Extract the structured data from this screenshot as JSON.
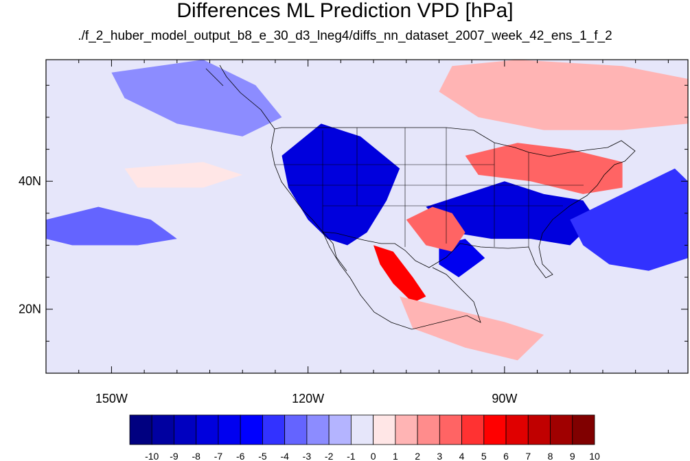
{
  "title": "Differences ML Prediction VPD [hPa]",
  "subtitle": "./f_2_huber_model_output_b8_e_30_d3_lneg4/diffs_nn_dataset_2007_week_42_ens_1_f_2",
  "map": {
    "projection": "cylindrical-equidistant",
    "lon_range": [
      -160,
      -62
    ],
    "lat_range": [
      10,
      59
    ],
    "x_ticks": [
      {
        "value": -150,
        "label": "150W"
      },
      {
        "value": -120,
        "label": "120W"
      },
      {
        "value": -90,
        "label": "90W"
      }
    ],
    "y_ticks": [
      {
        "value": 40,
        "label": "40N"
      },
      {
        "value": 20,
        "label": "20N"
      }
    ],
    "background_field": "-1 to 0"
  },
  "colorbar": {
    "labels": [
      "-10",
      "-9",
      "-8",
      "-7",
      "-6",
      "-5",
      "-4",
      "-3",
      "-2",
      "-1",
      "0",
      "1",
      "2",
      "3",
      "4",
      "5",
      "6",
      "7",
      "8",
      "9",
      "10"
    ],
    "colors": [
      "#000080",
      "#0000a0",
      "#0000c0",
      "#0000dd",
      "#0000f0",
      "#0000ff",
      "#3232ff",
      "#6464ff",
      "#8c8cff",
      "#b4b4ff",
      "#e6e6fa",
      "#ffe6e6",
      "#ffb4b4",
      "#ff8c8c",
      "#ff6464",
      "#ff3232",
      "#ff0000",
      "#e00000",
      "#c00000",
      "#a00000",
      "#800000"
    ]
  },
  "field_regions": [
    {
      "name": "western-us-strong-negative",
      "value": -7,
      "pts": [
        [
          -124,
          44
        ],
        [
          -118,
          49
        ],
        [
          -112,
          47
        ],
        [
          -106,
          42
        ],
        [
          -108,
          37
        ],
        [
          -111,
          32
        ],
        [
          -114,
          30
        ],
        [
          -117,
          31
        ],
        [
          -120,
          34
        ],
        [
          -123,
          39
        ]
      ]
    },
    {
      "name": "east-central-us-strong-negative",
      "value": -7,
      "pts": [
        [
          -102,
          36
        ],
        [
          -96,
          38
        ],
        [
          -90,
          40
        ],
        [
          -84,
          38
        ],
        [
          -78,
          37
        ],
        [
          -76,
          34
        ],
        [
          -80,
          30
        ],
        [
          -86,
          31
        ],
        [
          -92,
          31
        ],
        [
          -98,
          32
        ]
      ]
    },
    {
      "name": "south-texas-negative",
      "value": -6,
      "pts": [
        [
          -100,
          30
        ],
        [
          -96,
          31
        ],
        [
          -93,
          28
        ],
        [
          -97,
          25
        ],
        [
          -100,
          27
        ]
      ]
    },
    {
      "name": "mexico-strong-positive",
      "value": 6,
      "pts": [
        [
          -110,
          30
        ],
        [
          -107,
          29
        ],
        [
          -104,
          25
        ],
        [
          -102,
          22
        ],
        [
          -104,
          21
        ],
        [
          -107,
          24
        ],
        [
          -109,
          27
        ]
      ]
    },
    {
      "name": "texas-positive",
      "value": 4,
      "pts": [
        [
          -105,
          34
        ],
        [
          -101,
          36
        ],
        [
          -98,
          35
        ],
        [
          -96,
          32
        ],
        [
          -98,
          29
        ],
        [
          -102,
          30
        ]
      ]
    },
    {
      "name": "northeast-positive",
      "value": 4,
      "pts": [
        [
          -96,
          44
        ],
        [
          -88,
          46
        ],
        [
          -80,
          45
        ],
        [
          -72,
          43
        ],
        [
          -72,
          39
        ],
        [
          -78,
          38
        ],
        [
          -86,
          40
        ],
        [
          -94,
          41
        ]
      ]
    },
    {
      "name": "canada-positive",
      "value": 2,
      "pts": [
        [
          -98,
          58
        ],
        [
          -88,
          59
        ],
        [
          -72,
          58
        ],
        [
          -62,
          56
        ],
        [
          -62,
          49
        ],
        [
          -72,
          48
        ],
        [
          -84,
          48
        ],
        [
          -94,
          50
        ],
        [
          -100,
          54
        ]
      ]
    },
    {
      "name": "pacific-east-negative",
      "value": -3,
      "pts": [
        [
          -160,
          34
        ],
        [
          -152,
          36
        ],
        [
          -144,
          34
        ],
        [
          -140,
          31
        ],
        [
          -146,
          30
        ],
        [
          -156,
          30
        ],
        [
          -160,
          31
        ]
      ]
    },
    {
      "name": "atlantic-negative",
      "value": -4,
      "pts": [
        [
          -80,
          34
        ],
        [
          -72,
          38
        ],
        [
          -64,
          42
        ],
        [
          -62,
          40
        ],
        [
          -62,
          28
        ],
        [
          -68,
          26
        ],
        [
          -74,
          27
        ],
        [
          -78,
          30
        ]
      ]
    },
    {
      "name": "central-america-positive",
      "value": 2,
      "pts": [
        [
          -106,
          22
        ],
        [
          -98,
          20
        ],
        [
          -90,
          18
        ],
        [
          -84,
          16
        ],
        [
          -88,
          12
        ],
        [
          -96,
          14
        ],
        [
          -104,
          17
        ]
      ]
    },
    {
      "name": "pacific-positive",
      "value": 1,
      "pts": [
        [
          -148,
          42
        ],
        [
          -136,
          43
        ],
        [
          -130,
          41
        ],
        [
          -136,
          39
        ],
        [
          -146,
          39
        ]
      ]
    },
    {
      "name": "gulf-alaska-negative",
      "value": -2,
      "pts": [
        [
          -150,
          57
        ],
        [
          -136,
          59
        ],
        [
          -128,
          55
        ],
        [
          -124,
          50
        ],
        [
          -130,
          47
        ],
        [
          -140,
          49
        ],
        [
          -148,
          53
        ]
      ]
    }
  ]
}
